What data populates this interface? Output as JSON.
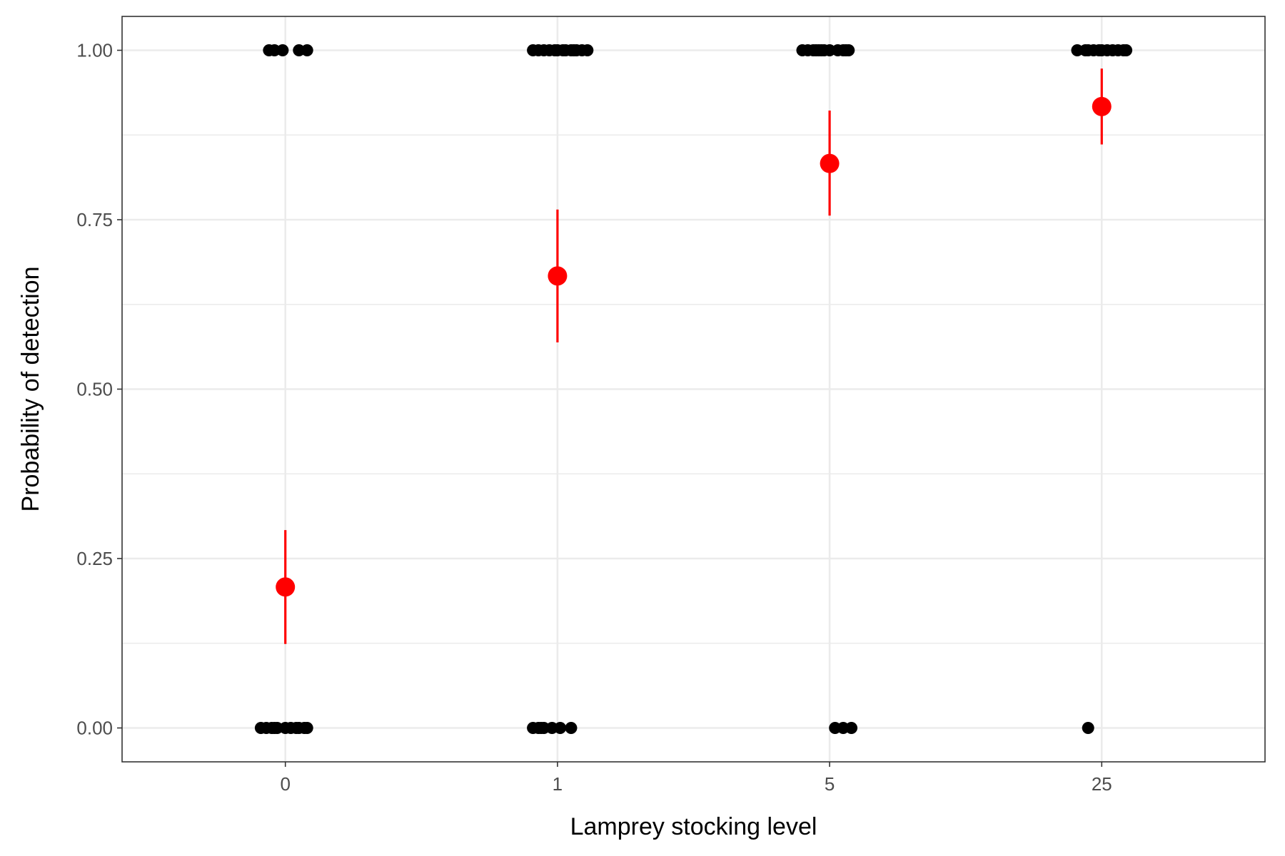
{
  "chart_data": {
    "type": "scatter",
    "title": "",
    "xlabel": "Lamprey stocking level",
    "ylabel": "Probability of detection",
    "categories": [
      "0",
      "1",
      "5",
      "25"
    ],
    "ylim": [
      -0.05,
      1.05
    ],
    "y_ticks": [
      "0.00",
      "0.25",
      "0.50",
      "0.75",
      "1.00"
    ],
    "y_tick_values": [
      0,
      0.25,
      0.5,
      0.75,
      1
    ],
    "grid": true,
    "legend": "none",
    "colors": {
      "observations": "#000000",
      "estimate": "#ff0000"
    },
    "series": [
      {
        "role": "observations",
        "points": [
          {
            "category": "0",
            "y": 1,
            "jitter": [
              -0.06,
              -0.04,
              -0.01,
              0.05,
              0.08
            ]
          },
          {
            "category": "0",
            "y": 0,
            "jitter": [
              -0.09,
              -0.07,
              -0.05,
              -0.04,
              -0.03,
              0.0,
              0.02,
              0.04,
              0.05,
              0.07,
              0.08
            ]
          },
          {
            "category": "1",
            "y": 1,
            "jitter": [
              -0.09,
              -0.07,
              -0.05,
              -0.03,
              -0.01,
              0.0,
              0.02,
              0.03,
              0.05,
              0.06,
              0.07,
              0.09,
              0.11
            ]
          },
          {
            "category": "1",
            "y": 0,
            "jitter": [
              -0.09,
              -0.07,
              -0.06,
              -0.05,
              -0.02,
              0.01,
              0.05
            ]
          },
          {
            "category": "5",
            "y": 1,
            "jitter": [
              -0.1,
              -0.08,
              -0.06,
              -0.05,
              -0.04,
              -0.03,
              -0.02,
              0.0,
              0.03,
              0.05,
              0.06,
              0.07
            ]
          },
          {
            "category": "5",
            "y": 0,
            "jitter": [
              0.02,
              0.05,
              0.08
            ]
          },
          {
            "category": "25",
            "y": 1,
            "jitter": [
              -0.09,
              -0.06,
              -0.05,
              -0.03,
              -0.01,
              0.0,
              0.02,
              0.04,
              0.06,
              0.08,
              0.09
            ]
          },
          {
            "category": "25",
            "y": 0,
            "jitter": [
              -0.05
            ]
          }
        ]
      },
      {
        "role": "estimate",
        "points": [
          {
            "category": "0",
            "y": 0.208,
            "lower": 0.124,
            "upper": 0.292
          },
          {
            "category": "1",
            "y": 0.667,
            "lower": 0.569,
            "upper": 0.765
          },
          {
            "category": "5",
            "y": 0.833,
            "lower": 0.756,
            "upper": 0.911
          },
          {
            "category": "25",
            "y": 0.917,
            "lower": 0.861,
            "upper": 0.973
          }
        ]
      }
    ]
  }
}
